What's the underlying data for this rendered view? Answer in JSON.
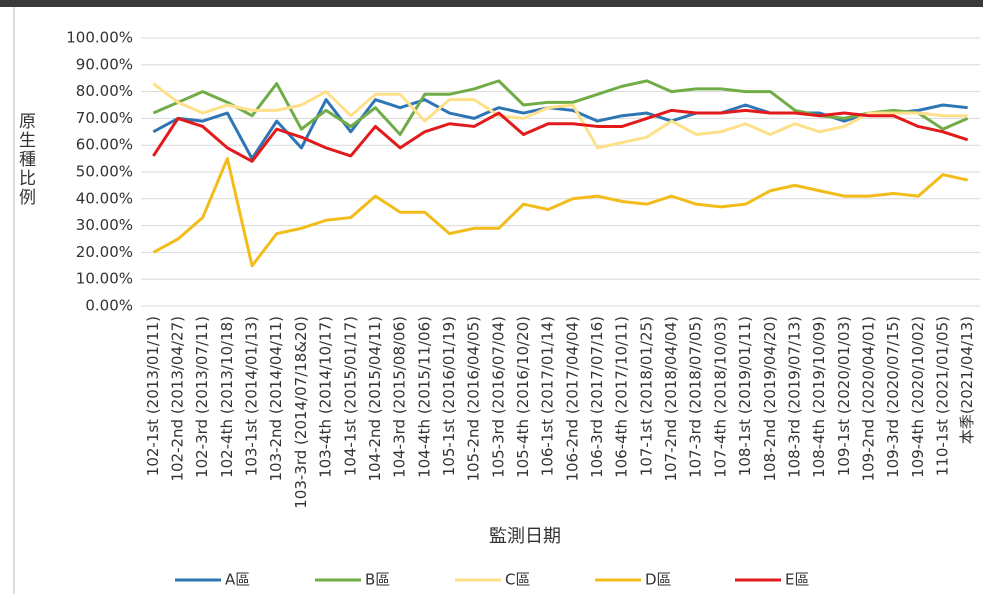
{
  "chart_data": {
    "type": "line",
    "y_label": "原生種比例",
    "x_label": "監測日期",
    "categories": [
      "102-1st (2013/01/11)",
      "102-2nd (2013/04/27)",
      "102-3rd (2013/07/11)",
      "102-4th (2013/10/18)",
      "103-1st (2014/01/13)",
      "103-2nd (2014/04/11)",
      "103-3rd (2014/07/18&20)",
      "103-4th (2014/10/17)",
      "104-1st (2015/01/17)",
      "104-2nd (2015/04/11)",
      "104-3rd (2015/08/06)",
      "104-4th (2015/11/06)",
      "105-1st (2016/01/19)",
      "105-2nd (2016/04/05)",
      "105-3rd (2016/07/04)",
      "105-4th (2016/10/20)",
      "106-1st (2017/01/14)",
      "106-2nd (2017/04/04)",
      "106-3rd (2017/07/16)",
      "106-4th (2017/10/11)",
      "107-1st (2018/01/25)",
      "107-2nd (2018/04/04)",
      "107-3rd (2018/07/05)",
      "107-4th (2018/10/03)",
      "108-1st (2019/01/11)",
      "108-2nd (2019/04/20)",
      "108-3rd (2019/07/13)",
      "108-4th (2019/10/09)",
      "109-1st (2020/01/03)",
      "109-2nd (2020/04/01)",
      "109-3rd (2020/07/15)",
      "109-4th (2020/10/02)",
      "110-1st (2021/01/05)",
      "本季(2021/04/13)"
    ],
    "series": [
      {
        "name": "A區",
        "color": "#2e75b6",
        "values": [
          65,
          70,
          69,
          72,
          55,
          69,
          59,
          77,
          65,
          77,
          74,
          77,
          72,
          70,
          74,
          72,
          74,
          73,
          69,
          71,
          72,
          69,
          72,
          72,
          75,
          72,
          72,
          72,
          69,
          72,
          72,
          73,
          75,
          74
        ]
      },
      {
        "name": "B區",
        "color": "#70ad47",
        "values": [
          72,
          76,
          80,
          76,
          71,
          83,
          66,
          73,
          67,
          74,
          64,
          79,
          79,
          81,
          84,
          75,
          76,
          76,
          79,
          82,
          84,
          80,
          81,
          81,
          80,
          80,
          73,
          71,
          70,
          72,
          73,
          72,
          66,
          70
        ]
      },
      {
        "name": "C區",
        "color": "#ffe08a",
        "values": [
          83,
          76,
          72,
          75,
          73,
          73,
          75,
          80,
          71,
          79,
          79,
          69,
          77,
          77,
          71,
          70,
          74,
          75,
          59,
          61,
          63,
          69,
          64,
          65,
          68,
          64,
          68,
          65,
          67,
          72,
          72,
          72,
          71,
          71
        ]
      },
      {
        "name": "D區",
        "color": "#f2bc1a",
        "values": [
          20,
          25,
          33,
          55,
          15,
          27,
          29,
          32,
          33,
          41,
          35,
          35,
          27,
          29,
          29,
          38,
          36,
          40,
          41,
          39,
          38,
          41,
          38,
          37,
          38,
          43,
          45,
          43,
          41,
          41,
          42,
          41,
          49,
          47
        ]
      },
      {
        "name": "E區",
        "color": "#e31a1c",
        "values": [
          56,
          70,
          67,
          59,
          54,
          66,
          63,
          59,
          56,
          67,
          59,
          65,
          68,
          67,
          72,
          64,
          68,
          68,
          67,
          67,
          70,
          73,
          72,
          72,
          73,
          72,
          72,
          71,
          72,
          71,
          71,
          67,
          65,
          62
        ]
      }
    ],
    "ylim": [
      0,
      100
    ],
    "yticks": [
      {
        "value": 0,
        "label": "0.00%"
      },
      {
        "value": 10,
        "label": "10.00%"
      },
      {
        "value": 20,
        "label": "20.00%"
      },
      {
        "value": 30,
        "label": "30.00%"
      },
      {
        "value": 40,
        "label": "40.00%"
      },
      {
        "value": 50,
        "label": "50.00%"
      },
      {
        "value": 60,
        "label": "60.00%"
      },
      {
        "value": 70,
        "label": "70.00%"
      },
      {
        "value": 80,
        "label": "80.00%"
      },
      {
        "value": 90,
        "label": "90.00%"
      },
      {
        "value": 100,
        "label": "100.00%"
      }
    ],
    "grid": true,
    "legend": "bottom"
  }
}
